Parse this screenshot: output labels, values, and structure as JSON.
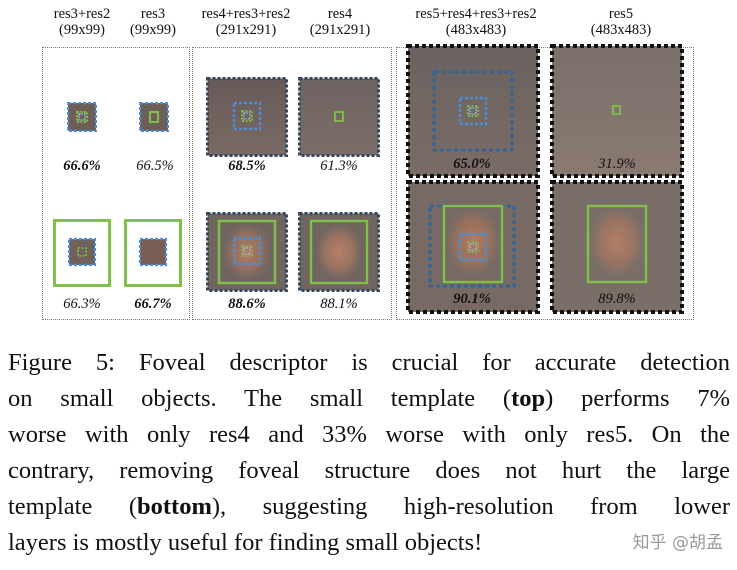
{
  "columns": [
    {
      "name": "res3+res2",
      "size": "(99x99)"
    },
    {
      "name": "res3",
      "size": "(99x99)"
    },
    {
      "name": "res4+res3+res2",
      "size": "(291x291)"
    },
    {
      "name": "res4",
      "size": "(291x291)"
    },
    {
      "name": "res5+res4+res3+res2",
      "size": "(483x483)"
    },
    {
      "name": "res5",
      "size": "(483x483)"
    }
  ],
  "top_row": [
    "66.6%",
    "66.5%",
    "68.5%",
    "61.3%",
    "65.0%",
    "31.9%"
  ],
  "bottom_row": [
    "66.3%",
    "66.7%",
    "88.6%",
    "88.1%",
    "90.1%",
    "89.8%"
  ],
  "caption": {
    "lines": [
      "Figure 5: Foveal descriptor is crucial for accurate detection",
      [
        "on small objects.  The small template (",
        "top",
        ") performs 7%"
      ],
      "worse with only res4 and 33% worse with only res5. On the",
      "contrary, removing foveal structure does not hurt the large",
      [
        "template (",
        "bottom",
        "), suggesting high-resolution from lower"
      ],
      "layers is mostly useful for finding small objects!"
    ]
  },
  "watermark": "知乎 @胡孟",
  "colors": {
    "dotted_blue": "#4a8fd8",
    "green": "#7fbf4a",
    "tile_bg": "#6e5f56"
  }
}
